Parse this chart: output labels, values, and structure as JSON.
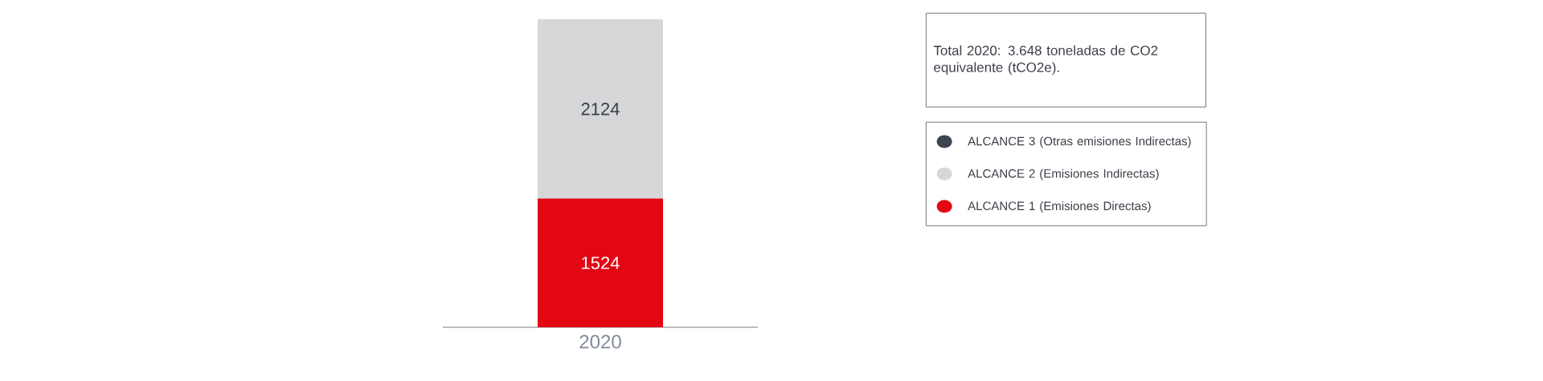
{
  "chart_data": {
    "type": "bar",
    "stacked": true,
    "categories": [
      "2020"
    ],
    "series": [
      {
        "name": "ALCANCE 1 (Emisiones Directas)",
        "color": "#e30613",
        "values": [
          1524
        ]
      },
      {
        "name": "ALCANCE 2 (Emisiones Indirectas)",
        "color": "#d6d7d9",
        "values": [
          2124
        ]
      },
      {
        "name": "ALCANCE 3 (Otras emisiones Indirectas)",
        "color": "#3d4450",
        "values": [
          null
        ]
      }
    ],
    "data_labels": true,
    "legend": "right",
    "annotations": [
      "Total 2020: 3.648 toneladas de CO2 equivalente (tCO2e)."
    ]
  }
}
